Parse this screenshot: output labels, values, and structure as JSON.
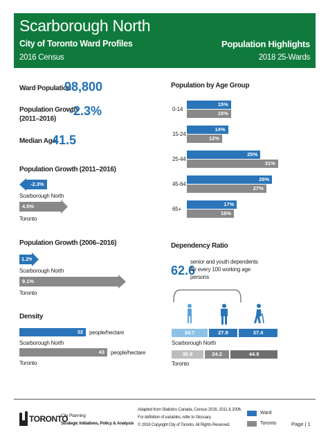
{
  "header": {
    "title": "Scarborough North",
    "subtitle": "City of Toronto Ward Profiles",
    "census": "2016 Census",
    "right_title": "Population Highlights",
    "right_sub": "2018 25-Wards"
  },
  "stats": {
    "ward_pop_label": "Ward Population",
    "ward_pop_value": "98,800",
    "growth_label_1": "Population Growth",
    "growth_label_2": "(2011–2016)",
    "growth_value": "-2.3%",
    "median_age_label": "Median Age",
    "median_age_value": "41.5"
  },
  "growth_2011": {
    "title": "Population Growth (2011–2016)",
    "ward_value": "-2.3%",
    "ward_label": "Scarborough North",
    "toronto_value": "4.5%",
    "toronto_label": "Toronto"
  },
  "growth_2006": {
    "title": "Population Growth (2006–2016)",
    "ward_value": "1.2%",
    "ward_label": "Scarborough North",
    "toronto_value": "9.1%",
    "toronto_label": "Toronto"
  },
  "density": {
    "title": "Density",
    "ward_value": "32",
    "ward_unit": "people/hectare",
    "ward_label": "Scarborough North",
    "toronto_value": "43",
    "toronto_unit": "people/hectare",
    "toronto_label": "Toronto"
  },
  "age_group": {
    "title": "Population by Age Group",
    "rows": [
      {
        "label": "0-14",
        "ward": "15%",
        "toronto": "15%"
      },
      {
        "label": "15-24",
        "ward": "14%",
        "toronto": "12%"
      },
      {
        "label": "25-44",
        "ward": "25%",
        "toronto": "31%"
      },
      {
        "label": "45-64",
        "ward": "29%",
        "toronto": "27%"
      },
      {
        "label": "65+",
        "ward": "17%",
        "toronto": "16%"
      }
    ]
  },
  "dependency": {
    "title": "Dependency Ratio",
    "value": "62.6",
    "desc_1": "senior and youth dependents",
    "desc_2": "for every 100 working age",
    "desc_3": "persons",
    "ward": [
      "34.7",
      "27.9",
      "37.4"
    ],
    "ward_label": "Scarborough North",
    "toronto": [
      "30.9",
      "24.2",
      "44.9"
    ],
    "toronto_label": "Toronto"
  },
  "chart_data": [
    {
      "type": "bar",
      "title": "Population by Age Group",
      "categories": [
        "0-14",
        "15-24",
        "25-44",
        "45-64",
        "65+"
      ],
      "series": [
        {
          "name": "Ward",
          "values": [
            15,
            14,
            25,
            29,
            17
          ]
        },
        {
          "name": "Toronto",
          "values": [
            15,
            12,
            31,
            27,
            16
          ]
        }
      ]
    },
    {
      "type": "bar",
      "title": "Population Growth (2011–2016)",
      "categories": [
        "Scarborough North",
        "Toronto"
      ],
      "values": [
        -2.3,
        4.5
      ]
    },
    {
      "type": "bar",
      "title": "Population Growth (2006–2016)",
      "categories": [
        "Scarborough North",
        "Toronto"
      ],
      "values": [
        1.2,
        9.1
      ]
    },
    {
      "type": "bar",
      "title": "Density",
      "categories": [
        "Scarborough North",
        "Toronto"
      ],
      "values": [
        32,
        43
      ]
    },
    {
      "type": "bar",
      "title": "Dependency Ratio",
      "categories": [
        "Scarborough North",
        "Toronto"
      ],
      "series": [
        {
          "values": [
            34.7,
            30.9
          ]
        },
        {
          "values": [
            27.9,
            24.2
          ]
        },
        {
          "values": [
            37.4,
            44.9
          ]
        }
      ]
    }
  ],
  "footer": {
    "logo_text": "TORONTO",
    "dept_1": "City Planning",
    "dept_2": "Strategic Initiatives, Policy & Analysis",
    "note_1": "Adapted from Statistics Canada, Census 2016, 2011 & 2006.",
    "note_2": "For definition of variables, refer to Glossary.",
    "note_3": "© 2018 Copyright City of Toronto. All Rights Reserved.",
    "legend_ward": "Ward",
    "legend_toronto": "Toronto",
    "page": "Page | 1"
  }
}
